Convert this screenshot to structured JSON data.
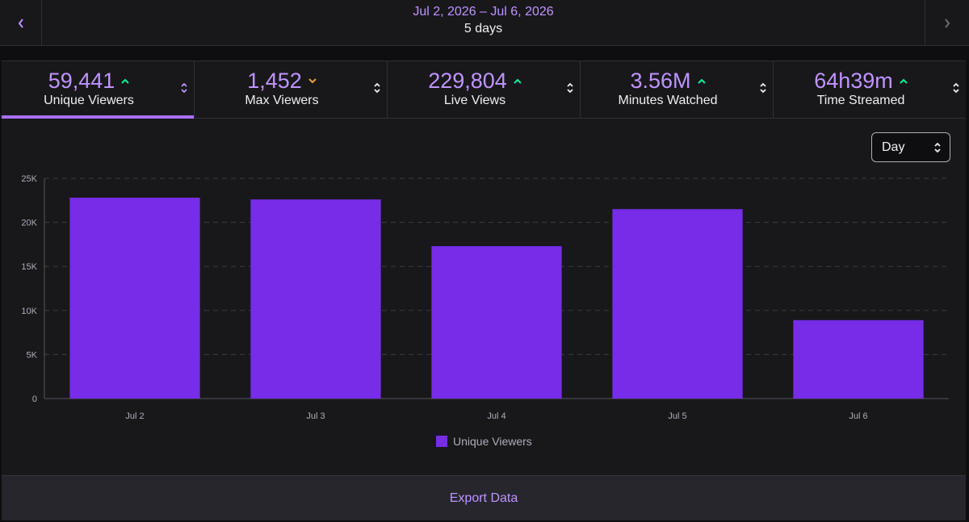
{
  "header": {
    "date_range": "Jul 2, 2026 – Jul 6, 2026",
    "duration": "5 days",
    "prev_icon": "chevron-left-icon",
    "next_icon": "chevron-right-icon"
  },
  "stats": [
    {
      "value": "59,441",
      "label": "Unique Viewers",
      "trend": "up",
      "active": true
    },
    {
      "value": "1,452",
      "label": "Max Viewers",
      "trend": "down",
      "active": false
    },
    {
      "value": "229,804",
      "label": "Live Views",
      "trend": "up",
      "active": false
    },
    {
      "value": "3.56M",
      "label": "Minutes Watched",
      "trend": "up",
      "active": false
    },
    {
      "value": "64h39m",
      "label": "Time Streamed",
      "trend": "up",
      "active": false
    }
  ],
  "interval_select": {
    "value": "Day"
  },
  "colors": {
    "accent": "#bf94ff",
    "bar": "#772ce8",
    "trend_up": "#00f593",
    "trend_down": "#e6a23c"
  },
  "chart_data": {
    "type": "bar",
    "categories": [
      "Jul 2",
      "Jul 3",
      "Jul 4",
      "Jul 5",
      "Jul 6"
    ],
    "series": [
      {
        "name": "Unique Viewers",
        "values": [
          22800,
          22600,
          17300,
          21500,
          8900
        ]
      }
    ],
    "yticks": [
      "0",
      "5K",
      "10K",
      "15K",
      "20K",
      "25K"
    ],
    "ylim": [
      0,
      25000
    ],
    "grid": true,
    "legend": "bottom-center"
  },
  "footer": {
    "export_label": "Export Data"
  }
}
